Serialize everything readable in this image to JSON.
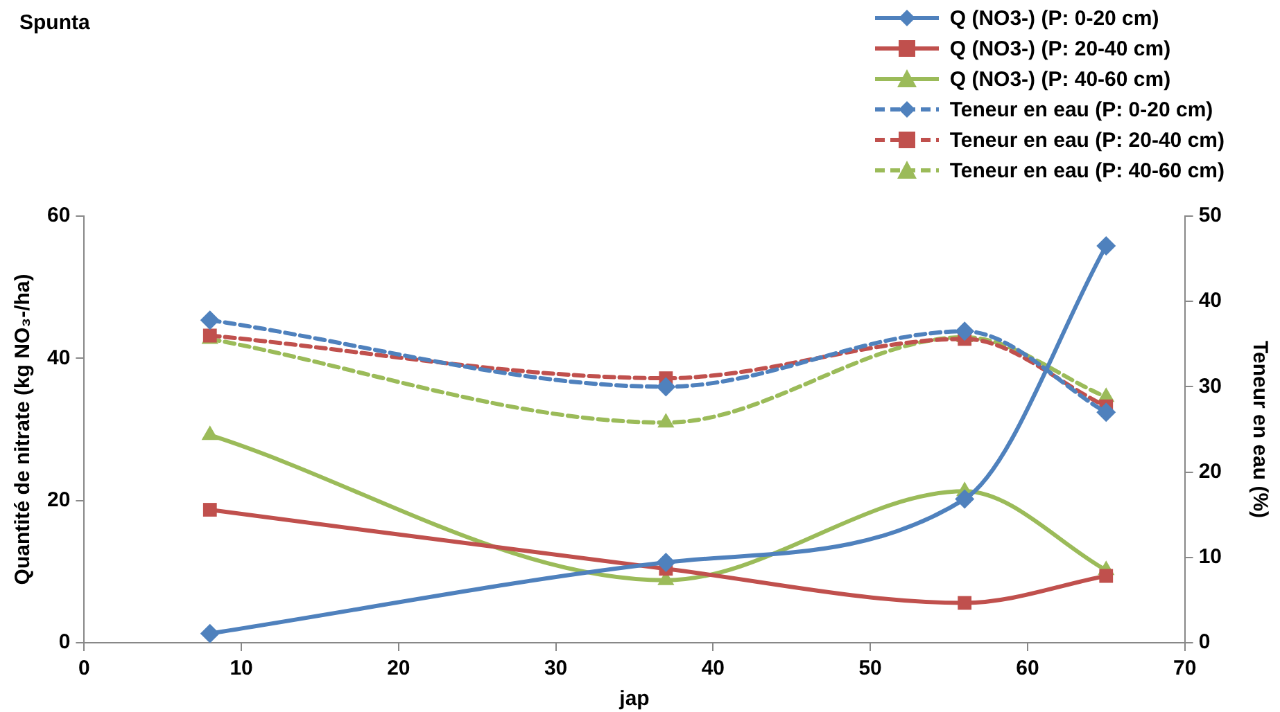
{
  "chart_data": {
    "type": "line",
    "title": "Spunta",
    "xlabel": "jap",
    "ylabel": "Quantité de nitrate (kg NO₃-/ha)",
    "y2label": "Teneur en eau (%)",
    "x": [
      8,
      37,
      56,
      65
    ],
    "xlim": [
      0,
      70
    ],
    "xticks": [
      0,
      10,
      20,
      30,
      40,
      50,
      60,
      70
    ],
    "ylim": [
      0,
      60
    ],
    "yticks": [
      0,
      20,
      40,
      60
    ],
    "y2lim": [
      0,
      50
    ],
    "y2ticks": [
      0,
      10,
      20,
      30,
      40,
      50
    ],
    "grid": false,
    "legend": "top right",
    "series": [
      {
        "name": "Q (NO3-) (P: 0-20 cm)",
        "color": "#4f81bd",
        "marker": "diamond",
        "line_style": "solid",
        "values": [
          1.3,
          11.3,
          20.2,
          55.8
        ]
      },
      {
        "name": "Q (NO3-) (P: 20-40 cm)",
        "color": "#c0504d",
        "marker": "square",
        "line_style": "solid",
        "values": [
          18.7,
          10.4,
          5.6,
          9.4
        ]
      },
      {
        "name": "Q (NO3-) (P: 40-60 cm)",
        "color": "#9bbb59",
        "marker": "triangle",
        "line_style": "solid",
        "values": [
          29.2,
          8.8,
          21.3,
          10.2
        ]
      },
      {
        "name": "Teneur en eau (P: 0-20 cm)",
        "color": "#4f81bd",
        "marker": "diamond",
        "line_style": "dashed",
        "axis": "y2",
        "values": [
          37.8,
          30.0,
          36.5,
          27.0
        ]
      },
      {
        "name": "Teneur en eau (P: 20-40 cm)",
        "color": "#c0504d",
        "marker": "square",
        "line_style": "dashed",
        "axis": "y2",
        "values": [
          36.0,
          31.0,
          35.6,
          27.7
        ]
      },
      {
        "name": "Teneur en eau (P: 40-60 cm)",
        "color": "#9bbb59",
        "marker": "triangle",
        "line_style": "dashed",
        "axis": "y2",
        "values": [
          35.6,
          25.8,
          35.8,
          28.8
        ]
      }
    ]
  }
}
